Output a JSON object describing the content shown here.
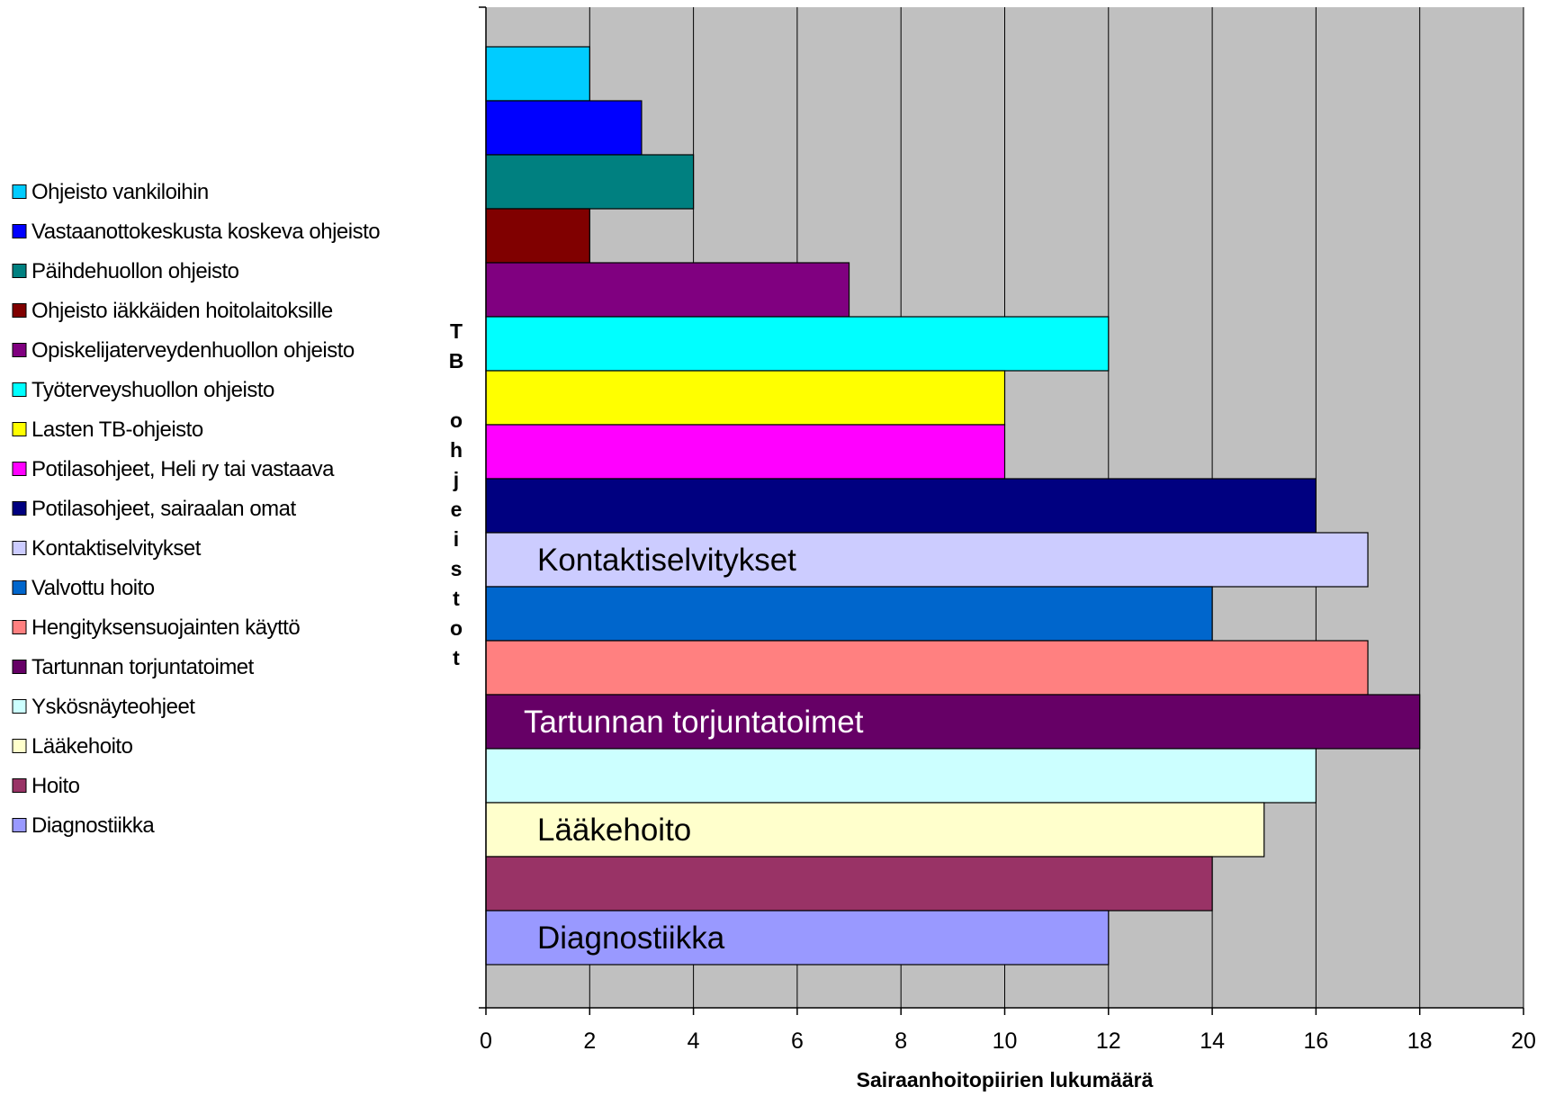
{
  "chart_data": {
    "type": "bar",
    "orientation": "horizontal",
    "xlabel": "Sairaanhoitopiirien lukumäärä",
    "ylabel": "TB ohjeistot",
    "xlim": [
      0,
      20
    ],
    "xticks": [
      0,
      2,
      4,
      6,
      8,
      10,
      12,
      14,
      16,
      18,
      20
    ],
    "grid": true,
    "plot_background": "#c0c0c0",
    "legend_position": "left",
    "series": [
      {
        "name": "Ohjeisto vankiloihin",
        "value": 2,
        "color": "#00ccff"
      },
      {
        "name": "Vastaanottokeskusta koskeva ohjeisto",
        "value": 3,
        "color": "#0000ff"
      },
      {
        "name": "Päihdehuollon ohjeisto",
        "value": 4,
        "color": "#008080"
      },
      {
        "name": "Ohjeisto iäkkäiden hoitolaitoksille",
        "value": 2,
        "color": "#800000"
      },
      {
        "name": "Opiskelijaterveydenhuollon ohjeisto",
        "value": 7,
        "color": "#800080"
      },
      {
        "name": "Työterveyshuollon ohjeisto",
        "value": 12,
        "color": "#00ffff"
      },
      {
        "name": "Lasten TB-ohjeisto",
        "value": 10,
        "color": "#ffff00"
      },
      {
        "name": "Potilasohjeet, Heli ry tai vastaava",
        "value": 10,
        "color": "#ff00ff"
      },
      {
        "name": "Potilasohjeet, sairaalan omat",
        "value": 16,
        "color": "#000080"
      },
      {
        "name": "Kontaktiselvitykset",
        "value": 17,
        "color": "#ccccff"
      },
      {
        "name": "Valvottu hoito",
        "value": 14,
        "color": "#0066cc"
      },
      {
        "name": "Hengityksensuojainten käyttö",
        "value": 17,
        "color": "#ff8080"
      },
      {
        "name": "Tartunnan torjuntatoimet",
        "value": 18,
        "color": "#660066"
      },
      {
        "name": "Yskösnäyteohjeet",
        "value": 16,
        "color": "#ccffff"
      },
      {
        "name": "Lääkehoito",
        "value": 15,
        "color": "#ffffcc"
      },
      {
        "name": "Hoito",
        "value": 14,
        "color": "#993366"
      },
      {
        "name": "Diagnostiikka",
        "value": 12,
        "color": "#9999ff"
      }
    ],
    "bar_labels": [
      {
        "text": "Kontaktiselvitykset",
        "series": "Kontaktiselvitykset",
        "color": "#000000"
      },
      {
        "text": "Tartunnan torjuntatoimet",
        "series": "Tartunnan torjuntatoimet",
        "color": "#ffffff"
      },
      {
        "text": "Lääkehoito",
        "series": "Lääkehoito",
        "color": "#000000"
      },
      {
        "text": "Diagnostiikka",
        "series": "Diagnostiikka",
        "color": "#000000"
      }
    ]
  }
}
